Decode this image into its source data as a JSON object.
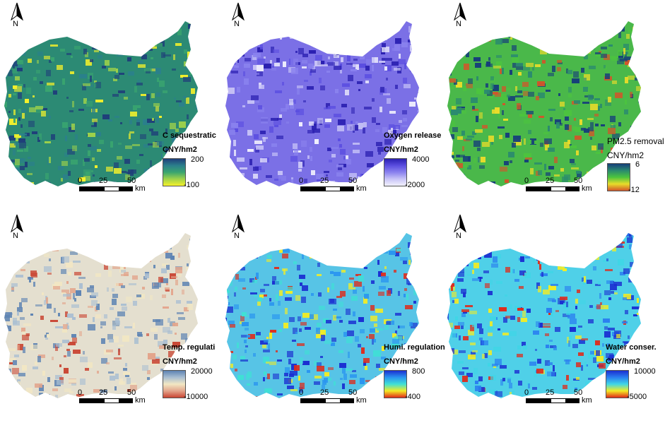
{
  "north_label": "N",
  "scale": {
    "ticks": [
      "0",
      "25",
      "50"
    ],
    "unit": "km"
  },
  "panels": [
    {
      "title": "C sequestratic",
      "unit": "CNY/hm2",
      "max": "200",
      "min": "-100",
      "colors": [
        "#1f3f7a",
        "#2b7f8c",
        "#3aa56f",
        "#9fd24a",
        "#f4f12b"
      ],
      "base": "#2c8a74",
      "style": "bold"
    },
    {
      "title": "Oxygen release",
      "unit": "CNY/hm2",
      "max": "4000",
      "min": "-2000",
      "colors": [
        "#2a1fb0",
        "#5b4ee0",
        "#8a82ee",
        "#c8c4f7",
        "#f2f1fd"
      ],
      "base": "#7b70e6",
      "style": "bold"
    },
    {
      "title": "PM2.5 removal",
      "unit": "CNY/hm2",
      "max": "6",
      "min": "-12",
      "colors": [
        "#163e7a",
        "#2a8a6f",
        "#4cc43e",
        "#e8dc2a",
        "#d2552a"
      ],
      "base": "#4ab84a",
      "style": "plain"
    },
    {
      "title": "Temp. regulati",
      "unit": "CNY/hm2",
      "max": "20000",
      "min": "-10000",
      "colors": [
        "#5d83b3",
        "#a9bed2",
        "#f2e7c3",
        "#e3a58c",
        "#c94533"
      ],
      "base": "#e4dfcf",
      "style": "bold"
    },
    {
      "title": "Humi. regulation",
      "unit": "CNY/hm2",
      "max": "800",
      "min": "-400",
      "colors": [
        "#1b2fd1",
        "#2a95f0",
        "#3fe0d5",
        "#f3ec24",
        "#e02a1a"
      ],
      "base": "#57c4e6",
      "style": "bold"
    },
    {
      "title": "Water conser.",
      "unit": "CNY/hm2",
      "max": "10000",
      "min": "-5000",
      "colors": [
        "#1b2fd1",
        "#2a7ff0",
        "#3fd6e6",
        "#f3ec24",
        "#e02a1a"
      ],
      "base": "#4fd0e8",
      "style": "bold"
    }
  ]
}
